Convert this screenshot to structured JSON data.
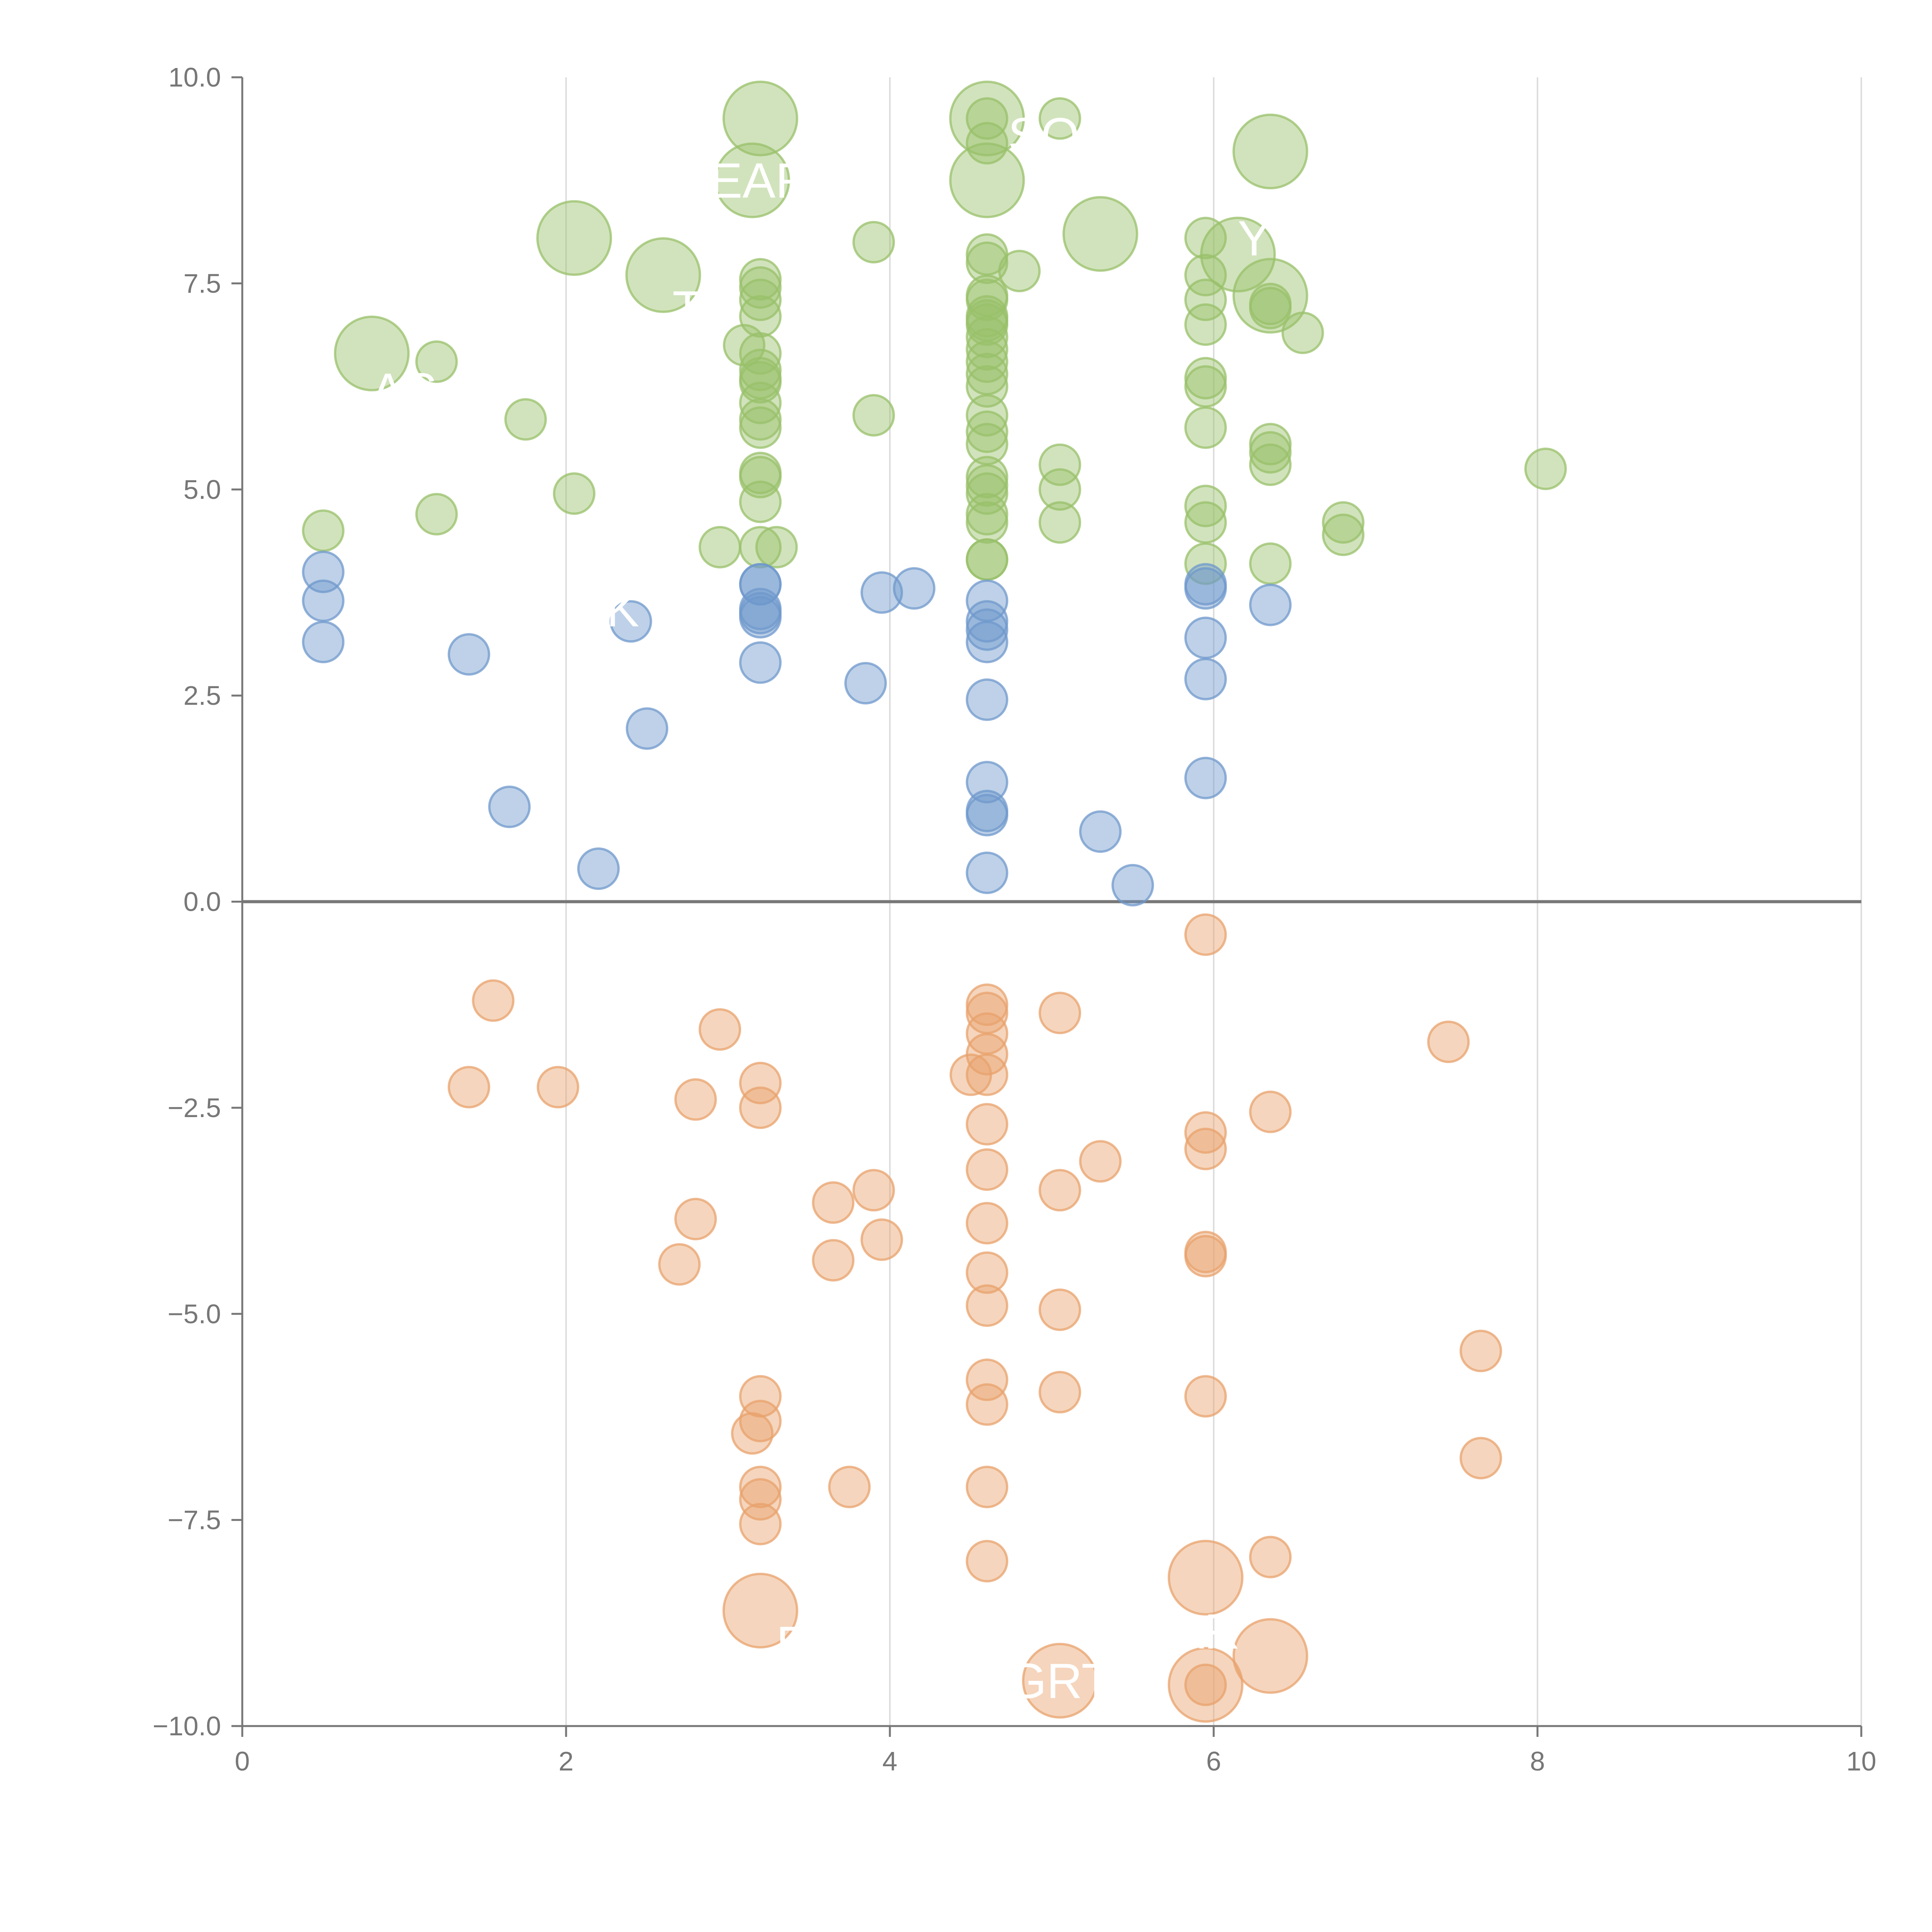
{
  "colors": {
    "positive_top": "#98c06a",
    "positive_bottom": "#6f98cc",
    "negative": "#e8a26c",
    "axis": "#777777",
    "grid": "#dddddd",
    "zero_line": "#777777",
    "label": "#ffffff"
  },
  "chart_data": {
    "type": "scatter",
    "title": "",
    "xlabel": "",
    "ylabel": "",
    "xlim": [
      0,
      10
    ],
    "ylim": [
      -10,
      10
    ],
    "x_ticks": [
      0,
      2,
      4,
      6,
      8,
      10
    ],
    "x_tick_labels": [
      "0",
      "2",
      "4",
      "6",
      "8",
      "10"
    ],
    "y_ticks": [
      -10,
      -7.5,
      -5,
      -2.5,
      0,
      2.5,
      5,
      7.5,
      10
    ],
    "y_tick_labels": [
      "−10.0",
      "−7.5",
      "−5.0",
      "−2.5",
      "0.0",
      "2.5",
      "5.0",
      "7.5",
      "10.0"
    ],
    "grid": "vertical",
    "zero_line": true,
    "series": [
      {
        "name": "green",
        "color": "#98c06a",
        "points": [
          [
            0.5,
            4.5
          ],
          [
            1.2,
            4.7
          ],
          [
            1.2,
            6.55
          ],
          [
            1.75,
            5.85
          ],
          [
            2.05,
            4.95
          ],
          [
            2.95,
            4.3
          ],
          [
            3.3,
            4.3
          ],
          [
            3.2,
            4.3
          ],
          [
            3.2,
            4.85
          ],
          [
            3.2,
            5.15
          ],
          [
            3.2,
            5.2
          ],
          [
            3.2,
            5.75
          ],
          [
            3.2,
            5.85
          ],
          [
            3.2,
            6.05
          ],
          [
            3.2,
            6.3
          ],
          [
            3.2,
            6.35
          ],
          [
            3.2,
            6.45
          ],
          [
            3.2,
            6.65
          ],
          [
            3.1,
            6.75
          ],
          [
            3.2,
            7.1
          ],
          [
            3.2,
            7.3
          ],
          [
            3.2,
            7.45
          ],
          [
            3.2,
            7.55
          ],
          [
            3.9,
            5.9
          ],
          [
            3.9,
            8.0
          ],
          [
            4.6,
            4.15
          ],
          [
            4.6,
            4.15
          ],
          [
            4.6,
            4.6
          ],
          [
            4.6,
            4.7
          ],
          [
            4.6,
            4.95
          ],
          [
            4.6,
            5.05
          ],
          [
            4.6,
            5.15
          ],
          [
            4.6,
            5.55
          ],
          [
            4.6,
            5.7
          ],
          [
            4.6,
            5.9
          ],
          [
            4.6,
            6.25
          ],
          [
            4.6,
            6.4
          ],
          [
            4.6,
            6.55
          ],
          [
            4.6,
            6.7
          ],
          [
            4.6,
            6.85
          ],
          [
            4.6,
            7.0
          ],
          [
            4.6,
            7.05
          ],
          [
            4.6,
            7.1
          ],
          [
            4.6,
            7.3
          ],
          [
            4.6,
            7.35
          ],
          [
            4.6,
            7.75
          ],
          [
            4.6,
            7.85
          ],
          [
            4.6,
            9.2
          ],
          [
            4.6,
            9.5
          ],
          [
            4.8,
            7.65
          ],
          [
            5.05,
            4.6
          ],
          [
            5.05,
            5.0
          ],
          [
            5.05,
            5.3
          ],
          [
            5.05,
            9.5
          ],
          [
            5.95,
            4.1
          ],
          [
            5.95,
            4.6
          ],
          [
            5.95,
            4.8
          ],
          [
            5.95,
            5.75
          ],
          [
            5.95,
            6.25
          ],
          [
            5.95,
            6.35
          ],
          [
            5.95,
            7.0
          ],
          [
            5.95,
            7.3
          ],
          [
            5.95,
            7.6
          ],
          [
            5.95,
            8.05
          ],
          [
            6.35,
            4.1
          ],
          [
            6.35,
            5.3
          ],
          [
            6.35,
            5.45
          ],
          [
            6.35,
            5.55
          ],
          [
            6.35,
            7.25
          ],
          [
            6.35,
            7.2
          ],
          [
            6.55,
            6.9
          ],
          [
            6.8,
            4.45
          ],
          [
            6.8,
            4.6
          ],
          [
            8.05,
            5.25
          ]
        ],
        "large_points": [
          [
            0.8,
            6.65
          ],
          [
            2.05,
            8.05
          ],
          [
            2.6,
            7.6
          ],
          [
            3.2,
            9.5
          ],
          [
            3.15,
            8.75
          ],
          [
            4.6,
            9.5
          ],
          [
            4.6,
            8.75
          ],
          [
            5.3,
            8.1
          ],
          [
            6.15,
            7.85
          ],
          [
            6.35,
            7.35
          ],
          [
            6.35,
            9.1
          ]
        ]
      },
      {
        "name": "blue",
        "color": "#6f98cc",
        "points": [
          [
            0.5,
            3.15
          ],
          [
            0.5,
            3.65
          ],
          [
            0.5,
            4.0
          ],
          [
            1.4,
            3.0
          ],
          [
            1.65,
            1.15
          ],
          [
            2.2,
            0.4
          ],
          [
            2.4,
            3.4
          ],
          [
            2.5,
            2.1
          ],
          [
            3.2,
            2.9
          ],
          [
            3.2,
            3.45
          ],
          [
            3.2,
            3.5
          ],
          [
            3.2,
            3.55
          ],
          [
            3.2,
            3.85
          ],
          [
            3.2,
            3.85
          ],
          [
            3.85,
            2.65
          ],
          [
            3.95,
            3.75
          ],
          [
            4.15,
            3.8
          ],
          [
            4.6,
            0.35
          ],
          [
            4.6,
            1.05
          ],
          [
            4.6,
            1.1
          ],
          [
            4.6,
            1.45
          ],
          [
            4.6,
            2.45
          ],
          [
            4.6,
            3.15
          ],
          [
            4.6,
            3.3
          ],
          [
            4.6,
            3.4
          ],
          [
            4.6,
            3.65
          ],
          [
            5.3,
            0.85
          ],
          [
            5.5,
            0.2
          ],
          [
            5.95,
            1.5
          ],
          [
            5.95,
            2.7
          ],
          [
            5.95,
            3.2
          ],
          [
            5.95,
            3.8
          ],
          [
            5.95,
            3.85
          ],
          [
            6.35,
            3.6
          ]
        ],
        "large_points": []
      },
      {
        "name": "orange",
        "color": "#e8a26c",
        "points": [
          [
            1.4,
            -2.25
          ],
          [
            1.55,
            -1.2
          ],
          [
            1.95,
            -2.25
          ],
          [
            2.7,
            -4.4
          ],
          [
            2.8,
            -2.4
          ],
          [
            2.8,
            -3.85
          ],
          [
            2.95,
            -1.55
          ],
          [
            3.2,
            -2.2
          ],
          [
            3.2,
            -2.5
          ],
          [
            3.2,
            -6.0
          ],
          [
            3.2,
            -6.3
          ],
          [
            3.15,
            -6.45
          ],
          [
            3.2,
            -7.1
          ],
          [
            3.2,
            -7.25
          ],
          [
            3.2,
            -7.55
          ],
          [
            3.65,
            -4.35
          ],
          [
            3.65,
            -3.65
          ],
          [
            3.75,
            -7.1
          ],
          [
            3.9,
            -3.5
          ],
          [
            3.95,
            -4.1
          ],
          [
            4.6,
            -1.25
          ],
          [
            4.6,
            -1.35
          ],
          [
            4.6,
            -1.6
          ],
          [
            4.6,
            -1.85
          ],
          [
            4.5,
            -2.1
          ],
          [
            4.6,
            -2.1
          ],
          [
            4.6,
            -2.7
          ],
          [
            4.6,
            -3.25
          ],
          [
            4.6,
            -3.9
          ],
          [
            4.6,
            -4.5
          ],
          [
            4.6,
            -4.9
          ],
          [
            4.6,
            -5.8
          ],
          [
            4.6,
            -6.1
          ],
          [
            4.6,
            -7.1
          ],
          [
            4.6,
            -8.0
          ],
          [
            5.05,
            -1.35
          ],
          [
            5.05,
            -3.5
          ],
          [
            5.05,
            -4.95
          ],
          [
            5.05,
            -5.95
          ],
          [
            5.3,
            -3.15
          ],
          [
            5.95,
            -0.4
          ],
          [
            5.95,
            -2.8
          ],
          [
            5.95,
            -3.0
          ],
          [
            5.95,
            -4.25
          ],
          [
            5.95,
            -4.3
          ],
          [
            5.95,
            -6.0
          ],
          [
            5.95,
            -9.5
          ],
          [
            6.35,
            -2.55
          ],
          [
            6.35,
            -7.95
          ],
          [
            7.45,
            -1.7
          ],
          [
            7.65,
            -5.45
          ],
          [
            7.65,
            -6.75
          ]
        ],
        "large_points": [
          [
            3.2,
            -8.6
          ],
          [
            5.05,
            -9.45
          ],
          [
            5.95,
            -8.2
          ],
          [
            5.95,
            -9.5
          ],
          [
            6.35,
            -9.15
          ]
        ]
      }
    ],
    "annotations": [
      {
        "text": "EAR",
        "x": 3.2,
        "y": 8.75
      },
      {
        "text": "SO",
        "x": 4.95,
        "y": 9.3
      },
      {
        "text": "Y",
        "x": 6.25,
        "y": 8.05
      },
      {
        "text": "T",
        "x": 2.75,
        "y": 7.2
      },
      {
        "text": "AS",
        "x": 1.0,
        "y": 6.2
      },
      {
        "text": "K",
        "x": 2.35,
        "y": 3.55
      },
      {
        "text": "E",
        "x": 3.4,
        "y": -9.0
      },
      {
        "text": "GRT",
        "x": 5.05,
        "y": -9.45
      },
      {
        "text": "AR",
        "x": 5.95,
        "y": -8.85
      }
    ]
  }
}
